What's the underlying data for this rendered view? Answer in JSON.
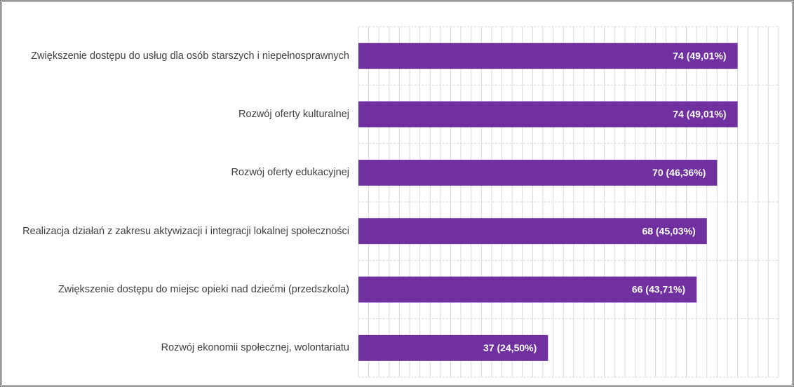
{
  "chart_data": {
    "type": "bar",
    "orientation": "horizontal",
    "categories": [
      "Zwiększenie dostępu do usług dla osób starszych i niepełnosprawnych",
      "Rozwój oferty kulturalnej",
      "Rozwój oferty edukacyjnej",
      "Realizacja działań z zakresu aktywizacji i integracji lokalnej społeczności",
      "Zwiększenie dostępu do miejsc opieki nad dziećmi (przedszkola)",
      "Rozwój ekonomii społecznej, wolontariatu"
    ],
    "values": [
      74,
      74,
      70,
      68,
      66,
      37
    ],
    "value_labels": [
      "74 (49,01%)",
      "74 (49,01%)",
      "70 (46,36%)",
      "68 (45,03%)",
      "66 (43,71%)",
      "37 (24,50%)"
    ],
    "color": "#7030a0",
    "xlim": [
      0,
      82
    ],
    "xticks": [
      0,
      2,
      4,
      6,
      8,
      10,
      12,
      14,
      16,
      18,
      20,
      22,
      24,
      26,
      28,
      30,
      32,
      34,
      36,
      38,
      40,
      42,
      44,
      46,
      48,
      50,
      52,
      54,
      56,
      58,
      60,
      62,
      64,
      66,
      68,
      70,
      72,
      74,
      76,
      78,
      80,
      82
    ],
    "grid": true
  }
}
